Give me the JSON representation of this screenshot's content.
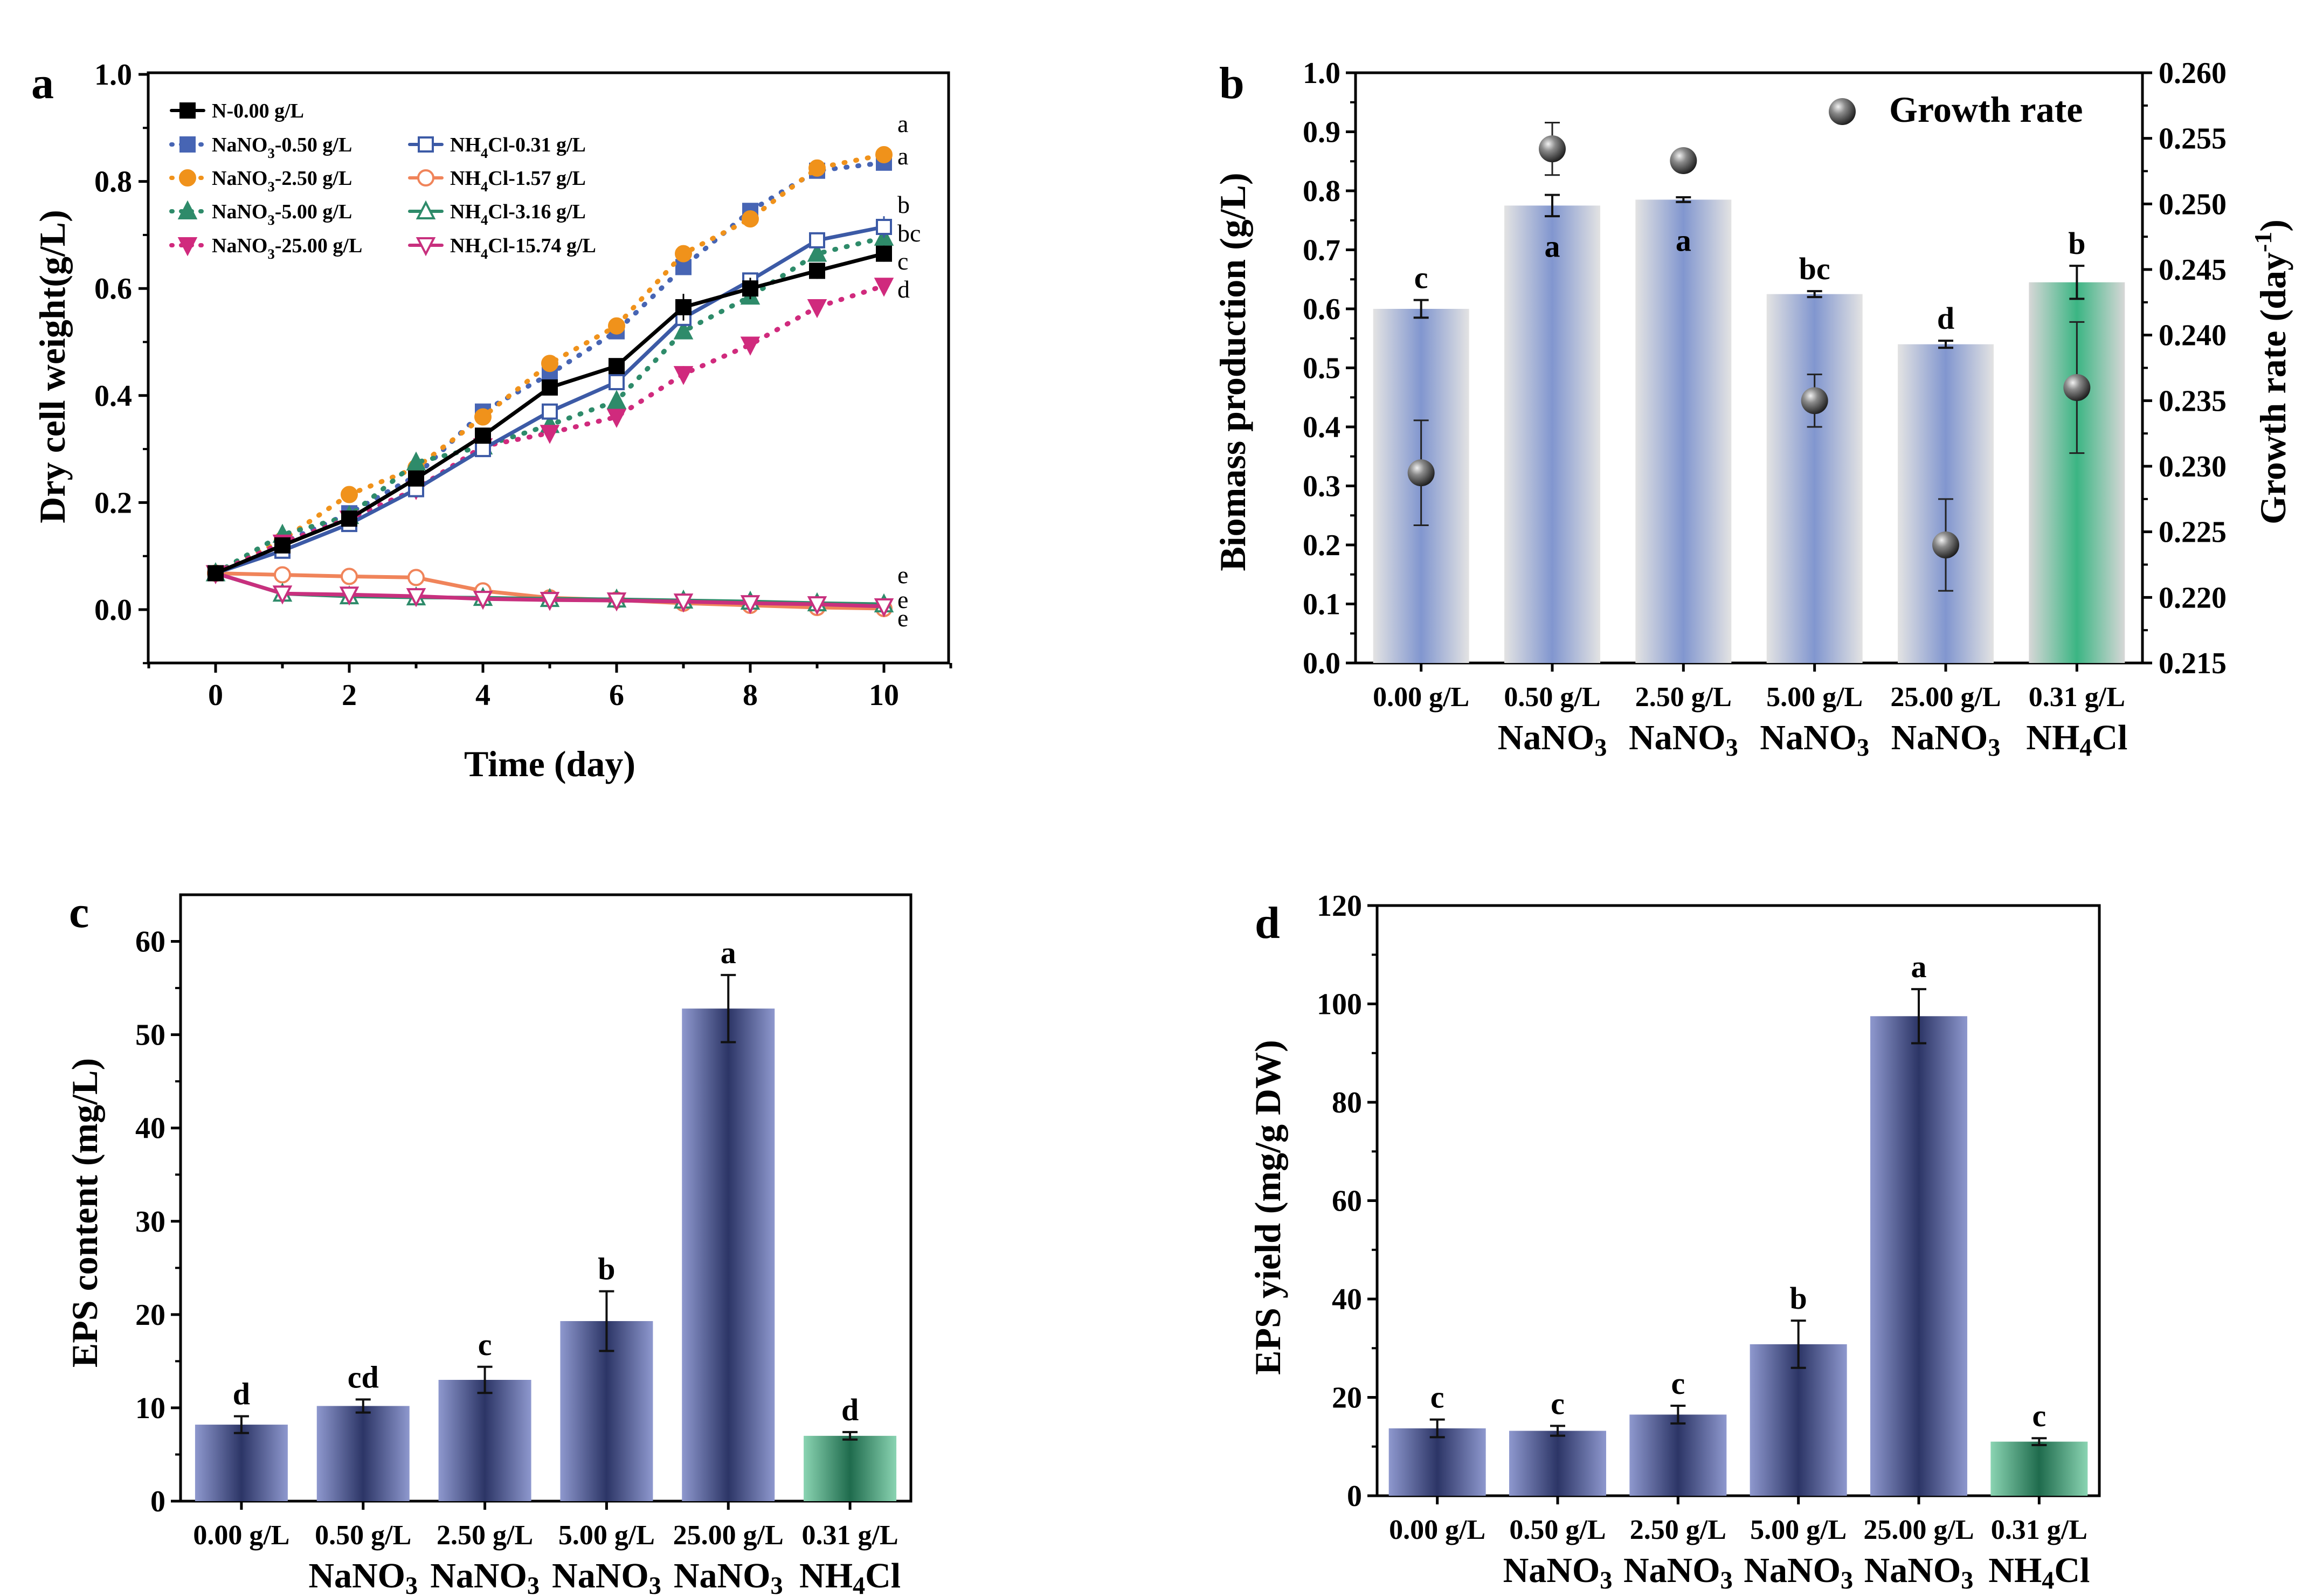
{
  "chart_data": [
    {
      "panel": "a",
      "type": "line",
      "xlabel": "Time (day)",
      "ylabel": "Dry cell weight(g/L)",
      "xlim": [
        -1,
        11
      ],
      "ylim": [
        -0.1,
        1.0
      ],
      "xticks": [
        "0",
        "2",
        "4",
        "6",
        "8",
        "10"
      ],
      "yticks": [
        "0.0",
        "0.2",
        "0.4",
        "0.6",
        "0.8",
        "1.0"
      ],
      "x": [
        0,
        1,
        2,
        3,
        4,
        5,
        6,
        7,
        8,
        9,
        10
      ],
      "series": [
        {
          "name": "N-0.00 g/L",
          "label": "N-0.00 g/L",
          "color": "#000000",
          "marker": "square-filled",
          "dash": "solid",
          "values": [
            0.068,
            0.12,
            0.17,
            0.245,
            0.325,
            0.415,
            0.455,
            0.565,
            0.6,
            0.633,
            0.665
          ],
          "errors": [
            0.005,
            0.007,
            0.008,
            0.008,
            0.01,
            0.01,
            0.01,
            0.025,
            0.02,
            0.015,
            0.015
          ],
          "letter": "c"
        },
        {
          "name": "NaNO3-0.50 g/L",
          "label": "NaNO₃-0.50 g/L",
          "color": "#4765b4",
          "marker": "square-filled",
          "dash": "dot",
          "values": [
            0.068,
            0.125,
            0.18,
            0.25,
            0.37,
            0.44,
            0.52,
            0.64,
            0.745,
            0.82,
            0.835
          ],
          "errors": [
            0.005,
            0.005,
            0.007,
            0.006,
            0.008,
            0.006,
            0.009,
            0.01,
            0.01,
            0.012,
            0.012
          ],
          "letter": "a"
        },
        {
          "name": "NaNO3-2.50 g/L",
          "label": "NaNO₃-2.50 g/L",
          "color": "#f0921b",
          "marker": "circle-filled",
          "dash": "dot",
          "values": [
            0.068,
            0.13,
            0.215,
            0.265,
            0.36,
            0.46,
            0.53,
            0.665,
            0.73,
            0.825,
            0.85
          ],
          "errors": [
            0.005,
            0.005,
            0.007,
            0.006,
            0.008,
            0.006,
            0.009,
            0.01,
            0.01,
            0.012,
            0.012
          ],
          "letter": "a"
        },
        {
          "name": "NaNO3-5.00 g/L",
          "label": "NaNO₃-5.00 g/L",
          "color": "#2e8b6a",
          "marker": "triangle-up-filled",
          "dash": "dot",
          "values": [
            0.068,
            0.14,
            0.175,
            0.275,
            0.305,
            0.345,
            0.39,
            0.52,
            0.585,
            0.665,
            0.695
          ],
          "errors": [
            0.005,
            0.005,
            0.007,
            0.006,
            0.008,
            0.006,
            0.009,
            0.012,
            0.01,
            0.012,
            0.012
          ],
          "letter": "bc"
        },
        {
          "name": "NaNO3-25.00 g/L",
          "label": "NaNO₃-25.00 g/L",
          "color": "#d02a7d",
          "marker": "triangle-down-filled",
          "dash": "dot",
          "values": [
            0.068,
            0.125,
            0.17,
            0.225,
            0.305,
            0.33,
            0.36,
            0.44,
            0.495,
            0.565,
            0.605
          ],
          "errors": [
            0.005,
            0.005,
            0.007,
            0.006,
            0.008,
            0.006,
            0.009,
            0.015,
            0.01,
            0.012,
            0.012
          ],
          "letter": "d"
        },
        {
          "name": "NH4Cl-0.31 g/L",
          "label": "NH₄Cl-0.31 g/L",
          "color": "#3c5aa6",
          "marker": "square-open",
          "dash": "solid",
          "values": [
            0.068,
            0.11,
            0.16,
            0.225,
            0.3,
            0.37,
            0.425,
            0.545,
            0.615,
            0.69,
            0.715
          ],
          "errors": [
            0.005,
            0.005,
            0.007,
            0.006,
            0.008,
            0.012,
            0.009,
            0.015,
            0.01,
            0.015,
            0.02
          ],
          "letter": "b"
        },
        {
          "name": "NH4Cl-1.57 g/L",
          "label": "NH₄Cl-1.57 g/L",
          "color": "#f0845a",
          "marker": "circle-open",
          "dash": "solid",
          "values": [
            0.068,
            0.065,
            0.062,
            0.06,
            0.035,
            0.022,
            0.018,
            0.012,
            0.008,
            0.004,
            0.002
          ],
          "errors": [
            0.004,
            0.004,
            0.004,
            0.004,
            0.004,
            0.003,
            0.003,
            0.003,
            0.003,
            0.003,
            0.003
          ],
          "letter": "e"
        },
        {
          "name": "NH4Cl-3.16 g/L",
          "label": "NH₄Cl-3.16 g/L",
          "color": "#2e8b6a",
          "marker": "triangle-up-open",
          "dash": "solid",
          "values": [
            0.068,
            0.03,
            0.025,
            0.023,
            0.022,
            0.02,
            0.019,
            0.017,
            0.015,
            0.012,
            0.01
          ],
          "errors": [
            0.004,
            0.004,
            0.004,
            0.004,
            0.004,
            0.003,
            0.003,
            0.003,
            0.003,
            0.003,
            0.003
          ],
          "letter": "e"
        },
        {
          "name": "NH4Cl-15.74 g/L",
          "label": "NH₄Cl-15.74 g/L",
          "color": "#c8307e",
          "marker": "triangle-down-open",
          "dash": "solid",
          "values": [
            0.068,
            0.03,
            0.028,
            0.025,
            0.02,
            0.018,
            0.017,
            0.015,
            0.012,
            0.01,
            0.006
          ],
          "errors": [
            0.004,
            0.004,
            0.004,
            0.004,
            0.004,
            0.003,
            0.003,
            0.003,
            0.003,
            0.003,
            0.003
          ],
          "letter": "e"
        }
      ]
    },
    {
      "panel": "b",
      "type": "bar",
      "ylabel": "Biomass production (g/L)",
      "y2label": "Growth rate (day⁻¹)",
      "ylim": [
        0.0,
        1.0
      ],
      "y2lim": [
        0.215,
        0.26
      ],
      "yticks": [
        "0.0",
        "0.1",
        "0.2",
        "0.3",
        "0.4",
        "0.5",
        "0.6",
        "0.7",
        "0.8",
        "0.9",
        "1.0"
      ],
      "y2ticks": [
        "0.215",
        "0.220",
        "0.225",
        "0.230",
        "0.235",
        "0.240",
        "0.245",
        "0.250",
        "0.255",
        "0.260"
      ],
      "categories": [
        [
          "0.00 g/L",
          ""
        ],
        [
          "0.50 g/L",
          "NaNO₃"
        ],
        [
          "2.50 g/L",
          "NaNO₃"
        ],
        [
          "5.00 g/L",
          "NaNO₃"
        ],
        [
          "25.00 g/L",
          "NaNO₃"
        ],
        [
          "0.31 g/L",
          "NH₄Cl"
        ]
      ],
      "values": [
        0.6,
        0.775,
        0.785,
        0.625,
        0.54,
        0.645
      ],
      "errors": [
        0.015,
        0.018,
        0.004,
        0.005,
        0.006,
        0.028
      ],
      "letters": [
        "c",
        "a",
        "a",
        "bc",
        "d",
        "b"
      ],
      "letter_pos": [
        "above",
        "inside",
        "inside",
        "above",
        "above",
        "above"
      ],
      "bar_colors": [
        "blue",
        "blue",
        "blue",
        "blue",
        "blue",
        "green"
      ],
      "growth_rate": {
        "name": "Growth rate",
        "values": [
          0.2295,
          0.2542,
          0.2533,
          0.235,
          0.224,
          0.236
        ],
        "errors": [
          0.004,
          0.002,
          0.0007,
          0.002,
          0.0035,
          0.005
        ]
      }
    },
    {
      "panel": "c",
      "type": "bar",
      "ylabel": "EPS content (mg/L)",
      "ylim": [
        0,
        65
      ],
      "yticks": [
        "0",
        "10",
        "20",
        "30",
        "40",
        "50",
        "60"
      ],
      "categories": [
        [
          "0.00 g/L",
          ""
        ],
        [
          "0.50 g/L",
          "NaNO₃"
        ],
        [
          "2.50 g/L",
          "NaNO₃"
        ],
        [
          "5.00 g/L",
          "NaNO₃"
        ],
        [
          "25.00 g/L",
          "NaNO₃"
        ],
        [
          "0.31 g/L",
          "NH₄Cl"
        ]
      ],
      "values": [
        8.2,
        10.2,
        13.0,
        19.3,
        52.8,
        7.0
      ],
      "errors": [
        0.9,
        0.7,
        1.4,
        3.2,
        3.6,
        0.4
      ],
      "letters": [
        "d",
        "cd",
        "c",
        "b",
        "a",
        "d"
      ],
      "bar_colors": [
        "navy",
        "navy",
        "navy",
        "navy",
        "navy",
        "green"
      ]
    },
    {
      "panel": "d",
      "type": "bar",
      "ylabel": "EPS yield (mg/g DW)",
      "ylim": [
        0,
        120
      ],
      "yticks": [
        "0",
        "20",
        "40",
        "60",
        "80",
        "100",
        "120"
      ],
      "categories": [
        [
          "0.00 g/L",
          ""
        ],
        [
          "0.50 g/L",
          "NaNO₃"
        ],
        [
          "2.50 g/L",
          "NaNO₃"
        ],
        [
          "5.00 g/L",
          "NaNO₃"
        ],
        [
          "25.00 g/L",
          "NaNO₃"
        ],
        [
          "0.31 g/L",
          "NH₄Cl"
        ]
      ],
      "values": [
        13.7,
        13.2,
        16.5,
        30.8,
        97.5,
        11.0
      ],
      "errors": [
        1.8,
        1.0,
        1.8,
        4.8,
        5.5,
        0.7
      ],
      "letters": [
        "c",
        "c",
        "c",
        "b",
        "a",
        "c"
      ],
      "bar_colors": [
        "navy",
        "navy",
        "navy",
        "navy",
        "navy",
        "green"
      ]
    }
  ]
}
